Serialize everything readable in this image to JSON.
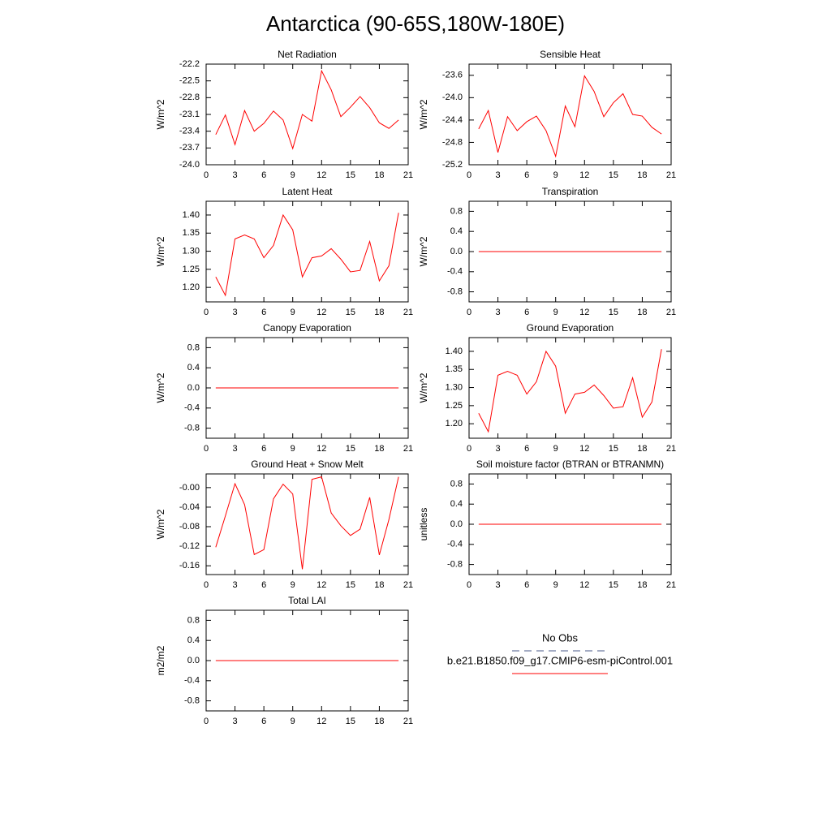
{
  "title": "Antarctica (90-65S,180W-180E)",
  "legend": {
    "entries": [
      {
        "name": "No Obs",
        "color": "#4a5a8a",
        "dashed": true
      },
      {
        "name": "b.e21.B1850.f09_g17.CMIP6-esm-piControl.001",
        "color": "#ff0000",
        "dashed": false
      }
    ]
  },
  "chart_data": [
    {
      "type": "line",
      "title": "Net Radiation",
      "ylabel": "W/m^2",
      "x": [
        1,
        2,
        3,
        4,
        5,
        6,
        7,
        8,
        9,
        10,
        11,
        12,
        13,
        14,
        15,
        16,
        17,
        18,
        19,
        20
      ],
      "series": [
        {
          "color": "#ff0000",
          "values": [
            -23.46,
            -23.11,
            -23.64,
            -23.03,
            -23.4,
            -23.26,
            -23.04,
            -23.2,
            -23.71,
            -23.1,
            -23.22,
            -22.32,
            -22.66,
            -23.14,
            -22.97,
            -22.78,
            -22.98,
            -23.25,
            -23.35,
            -23.2
          ]
        }
      ],
      "xlim": [
        0,
        21
      ],
      "xticks": [
        0,
        3,
        6,
        9,
        12,
        15,
        18,
        21
      ],
      "ylim": [
        -24.0,
        -22.2
      ],
      "yticks": [
        {
          "value": -24,
          "label": "-24.0"
        },
        -23.7,
        -23.4,
        -23.1,
        -22.8,
        -22.5,
        -22.2
      ]
    },
    {
      "type": "line",
      "title": "Sensible Heat",
      "ylabel": "W/m^2",
      "x": [
        1,
        2,
        3,
        4,
        5,
        6,
        7,
        8,
        9,
        10,
        11,
        12,
        13,
        14,
        15,
        16,
        17,
        18,
        19,
        20
      ],
      "series": [
        {
          "color": "#ff0000",
          "values": [
            -24.56,
            -24.23,
            -24.98,
            -24.34,
            -24.59,
            -24.43,
            -24.33,
            -24.59,
            -25.05,
            -24.15,
            -24.52,
            -23.61,
            -23.89,
            -24.34,
            -24.09,
            -23.93,
            -24.3,
            -24.33,
            -24.53,
            -24.65
          ]
        }
      ],
      "xlim": [
        0,
        21
      ],
      "xticks": [
        0,
        3,
        6,
        9,
        12,
        15,
        18,
        21
      ],
      "ylim": [
        -25.2,
        -23.4
      ],
      "yticks": [
        -25.2,
        -24.8,
        -24.4,
        {
          "value": -24,
          "label": "-24.0"
        },
        -23.6
      ]
    },
    {
      "type": "line",
      "title": "Latent Heat",
      "ylabel": "W/m^2",
      "x": [
        1,
        2,
        3,
        4,
        5,
        6,
        7,
        8,
        9,
        10,
        11,
        12,
        13,
        14,
        15,
        16,
        17,
        18,
        19,
        20
      ],
      "series": [
        {
          "color": "#ff0000",
          "values": [
            1.229,
            1.178,
            1.334,
            1.345,
            1.334,
            1.282,
            1.316,
            1.4,
            1.359,
            1.229,
            1.282,
            1.287,
            1.307,
            1.278,
            1.243,
            1.247,
            1.327,
            1.218,
            1.26,
            1.406
          ]
        }
      ],
      "xlim": [
        0,
        21
      ],
      "xticks": [
        0,
        3,
        6,
        9,
        12,
        15,
        18,
        21
      ],
      "ylim": [
        1.16,
        1.438
      ],
      "yticks": [
        {
          "value": 1.2,
          "label": "1.20"
        },
        1.25,
        {
          "value": 1.3,
          "label": "1.30"
        },
        1.35,
        {
          "value": 1.4,
          "label": "1.40"
        }
      ]
    },
    {
      "type": "line",
      "title": "Transpiration",
      "ylabel": "W/m^2",
      "x": [
        1,
        2,
        3,
        4,
        5,
        6,
        7,
        8,
        9,
        10,
        11,
        12,
        13,
        14,
        15,
        16,
        17,
        18,
        19,
        20
      ],
      "series": [
        {
          "color": "#ff0000",
          "values": [
            0,
            0,
            0,
            0,
            0,
            0,
            0,
            0,
            0,
            0,
            0,
            0,
            0,
            0,
            0,
            0,
            0,
            0,
            0,
            0
          ]
        }
      ],
      "xlim": [
        0,
        21
      ],
      "xticks": [
        0,
        3,
        6,
        9,
        12,
        15,
        18,
        21
      ],
      "ylim": [
        -1,
        1
      ],
      "yticks": [
        -0.8,
        -0.4,
        {
          "value": 0,
          "label": "0.0"
        },
        0.4,
        0.8
      ]
    },
    {
      "type": "line",
      "title": "Canopy Evaporation",
      "ylabel": "W/m^2",
      "x": [
        1,
        2,
        3,
        4,
        5,
        6,
        7,
        8,
        9,
        10,
        11,
        12,
        13,
        14,
        15,
        16,
        17,
        18,
        19,
        20
      ],
      "series": [
        {
          "color": "#ff0000",
          "values": [
            0,
            0,
            0,
            0,
            0,
            0,
            0,
            0,
            0,
            0,
            0,
            0,
            0,
            0,
            0,
            0,
            0,
            0,
            0,
            0
          ]
        }
      ],
      "xlim": [
        0,
        21
      ],
      "xticks": [
        0,
        3,
        6,
        9,
        12,
        15,
        18,
        21
      ],
      "ylim": [
        -1,
        1
      ],
      "yticks": [
        -0.8,
        -0.4,
        {
          "value": 0,
          "label": "0.0"
        },
        0.4,
        0.8
      ]
    },
    {
      "type": "line",
      "title": "Ground Evaporation",
      "ylabel": "W/m^2",
      "x": [
        1,
        2,
        3,
        4,
        5,
        6,
        7,
        8,
        9,
        10,
        11,
        12,
        13,
        14,
        15,
        16,
        17,
        18,
        19,
        20
      ],
      "series": [
        {
          "color": "#ff0000",
          "values": [
            1.229,
            1.178,
            1.334,
            1.345,
            1.334,
            1.282,
            1.316,
            1.4,
            1.359,
            1.229,
            1.282,
            1.287,
            1.307,
            1.278,
            1.243,
            1.247,
            1.327,
            1.218,
            1.26,
            1.406
          ]
        }
      ],
      "xlim": [
        0,
        21
      ],
      "xticks": [
        0,
        3,
        6,
        9,
        12,
        15,
        18,
        21
      ],
      "ylim": [
        1.16,
        1.438
      ],
      "yticks": [
        {
          "value": 1.2,
          "label": "1.20"
        },
        1.25,
        {
          "value": 1.3,
          "label": "1.30"
        },
        1.35,
        {
          "value": 1.4,
          "label": "1.40"
        }
      ]
    },
    {
      "type": "line",
      "title": "Ground Heat + Snow Melt",
      "ylabel": "W/m^2",
      "x": [
        1,
        2,
        3,
        4,
        5,
        6,
        7,
        8,
        9,
        10,
        11,
        12,
        13,
        14,
        15,
        16,
        17,
        18,
        19,
        20
      ],
      "series": [
        {
          "color": "#ff0000",
          "values": [
            -0.122,
            -0.058,
            0.008,
            -0.035,
            -0.137,
            -0.127,
            -0.023,
            0.007,
            -0.013,
            -0.167,
            0.017,
            0.022,
            -0.052,
            -0.078,
            -0.098,
            -0.085,
            -0.02,
            -0.138,
            -0.065,
            0.022
          ]
        }
      ],
      "xlim": [
        0,
        21
      ],
      "xticks": [
        0,
        3,
        6,
        9,
        12,
        15,
        18,
        21
      ],
      "ylim": [
        -0.178,
        0.028
      ],
      "yticks": [
        -0.16,
        -0.12,
        -0.08,
        -0.04,
        {
          "value": 0,
          "label": "-0.00"
        }
      ]
    },
    {
      "type": "line",
      "title": "Soil moisture factor (BTRAN or BTRANMN)",
      "ylabel": "unitless",
      "x": [
        1,
        2,
        3,
        4,
        5,
        6,
        7,
        8,
        9,
        10,
        11,
        12,
        13,
        14,
        15,
        16,
        17,
        18,
        19,
        20
      ],
      "series": [
        {
          "color": "#ff0000",
          "values": [
            0,
            0,
            0,
            0,
            0,
            0,
            0,
            0,
            0,
            0,
            0,
            0,
            0,
            0,
            0,
            0,
            0,
            0,
            0,
            0
          ]
        }
      ],
      "xlim": [
        0,
        21
      ],
      "xticks": [
        0,
        3,
        6,
        9,
        12,
        15,
        18,
        21
      ],
      "ylim": [
        -1,
        1
      ],
      "yticks": [
        -0.8,
        -0.4,
        {
          "value": 0,
          "label": "0.0"
        },
        0.4,
        0.8
      ]
    },
    {
      "type": "line",
      "title": "Total LAI",
      "ylabel": "m2/m2",
      "x": [
        1,
        2,
        3,
        4,
        5,
        6,
        7,
        8,
        9,
        10,
        11,
        12,
        13,
        14,
        15,
        16,
        17,
        18,
        19,
        20
      ],
      "series": [
        {
          "color": "#ff0000",
          "values": [
            0,
            0,
            0,
            0,
            0,
            0,
            0,
            0,
            0,
            0,
            0,
            0,
            0,
            0,
            0,
            0,
            0,
            0,
            0,
            0
          ]
        }
      ],
      "xlim": [
        0,
        21
      ],
      "xticks": [
        0,
        3,
        6,
        9,
        12,
        15,
        18,
        21
      ],
      "ylim": [
        -1,
        1
      ],
      "yticks": [
        -0.8,
        -0.4,
        {
          "value": 0,
          "label": "0.0"
        },
        0.4,
        0.8
      ]
    }
  ]
}
